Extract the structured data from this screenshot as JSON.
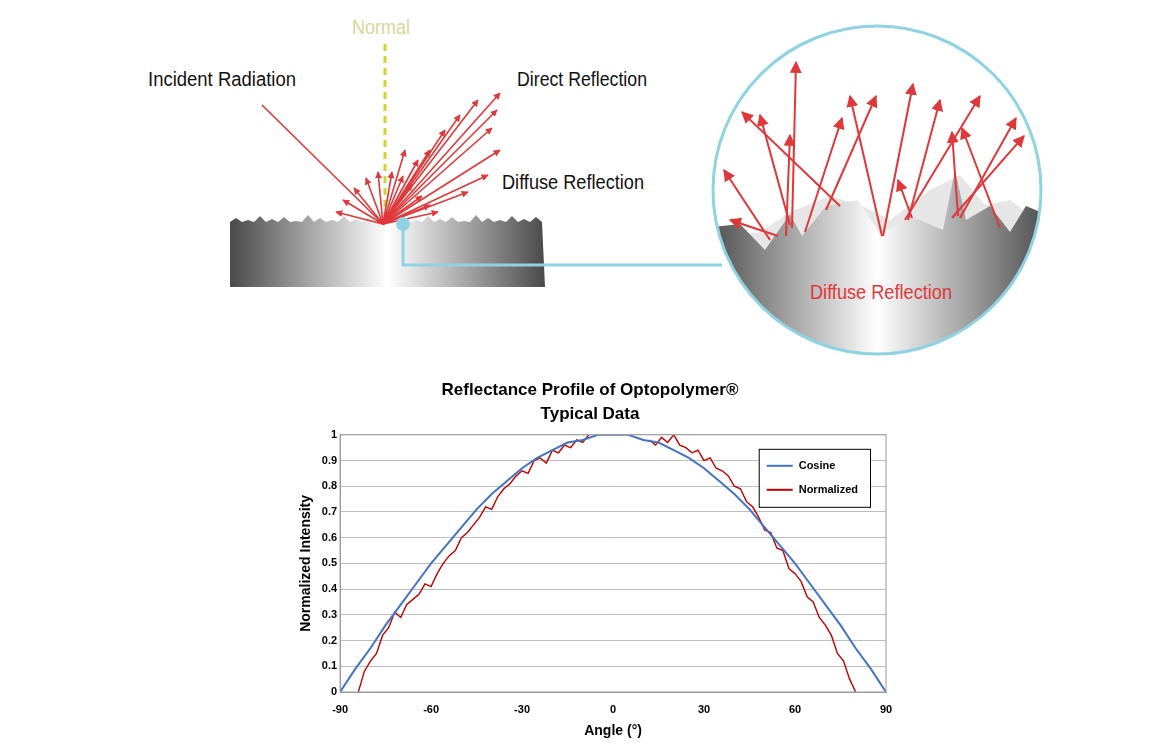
{
  "diagram": {
    "normal": "Normal",
    "incident": "Incident Radiation",
    "direct": "Direct Reflection",
    "diffuse": "Diffuse Reflection",
    "inset_label": "Diffuse Reflection"
  },
  "chart_data": {
    "type": "line",
    "title": "Reflectance Profile of Optopolymer®",
    "subtitle": "Typical Data",
    "x_label": "Angle (°)",
    "y_label": "Normalized Intensity",
    "xlim": [
      -90,
      90
    ],
    "xticks": [
      -90,
      -60,
      -30,
      0,
      30,
      60,
      90
    ],
    "ylim": [
      0,
      1
    ],
    "yticks": [
      0,
      0.1,
      0.2,
      0.3,
      0.4,
      0.5,
      0.6,
      0.7,
      0.8,
      0.9,
      1
    ],
    "grid": true,
    "legend": "upper right",
    "series": [
      {
        "name": "Cosine",
        "color": "#4472c4",
        "x": [
          -90,
          -85,
          -80,
          -75,
          -70,
          -65,
          -60,
          -55,
          -50,
          -45,
          -40,
          -35,
          -30,
          -25,
          -20,
          -15,
          -10,
          -5,
          0,
          5,
          10,
          15,
          20,
          25,
          30,
          35,
          40,
          45,
          50,
          55,
          60,
          65,
          70,
          75,
          80,
          85,
          90
        ],
        "values": [
          0,
          0.09,
          0.17,
          0.26,
          0.34,
          0.42,
          0.5,
          0.57,
          0.64,
          0.71,
          0.77,
          0.82,
          0.87,
          0.91,
          0.94,
          0.97,
          0.98,
          1,
          1,
          1,
          0.98,
          0.97,
          0.94,
          0.91,
          0.87,
          0.82,
          0.77,
          0.71,
          0.64,
          0.57,
          0.5,
          0.42,
          0.34,
          0.26,
          0.17,
          0.09,
          0
        ]
      },
      {
        "name": "Normalized",
        "color": "#c00000",
        "x": [
          -84,
          -82,
          -80,
          -78,
          -76,
          -74,
          -72,
          -70,
          -68,
          -66,
          -64,
          -62,
          -60,
          -58,
          -56,
          -54,
          -52,
          -50,
          -48,
          -46,
          -44,
          -42,
          -40,
          -38,
          -36,
          -34,
          -32,
          -30,
          -28,
          -26,
          -24,
          -22,
          -20,
          -18,
          -16,
          -14,
          -12,
          -10,
          -8,
          0,
          12,
          14,
          16,
          18,
          20,
          22,
          24,
          26,
          28,
          30,
          32,
          34,
          36,
          38,
          40,
          42,
          44,
          46,
          48,
          50,
          52,
          54,
          56,
          58,
          60,
          62,
          64,
          66,
          68,
          70,
          72,
          74,
          76,
          78,
          80
        ],
        "values": [
          0,
          0.08,
          0.12,
          0.15,
          0.22,
          0.25,
          0.31,
          0.29,
          0.34,
          0.36,
          0.38,
          0.42,
          0.41,
          0.46,
          0.5,
          0.53,
          0.55,
          0.6,
          0.62,
          0.65,
          0.68,
          0.72,
          0.71,
          0.76,
          0.79,
          0.81,
          0.84,
          0.86,
          0.85,
          0.9,
          0.91,
          0.89,
          0.94,
          0.93,
          0.96,
          0.95,
          0.98,
          0.97,
          1,
          null,
          0.98,
          0.96,
          0.99,
          0.97,
          1,
          0.96,
          0.95,
          0.93,
          0.94,
          0.9,
          0.91,
          0.87,
          0.86,
          0.84,
          0.8,
          0.79,
          0.74,
          0.72,
          0.68,
          0.63,
          0.62,
          0.56,
          0.55,
          0.48,
          0.46,
          0.43,
          0.37,
          0.35,
          0.29,
          0.26,
          0.22,
          0.15,
          0.12,
          0.05,
          0
        ]
      }
    ]
  }
}
